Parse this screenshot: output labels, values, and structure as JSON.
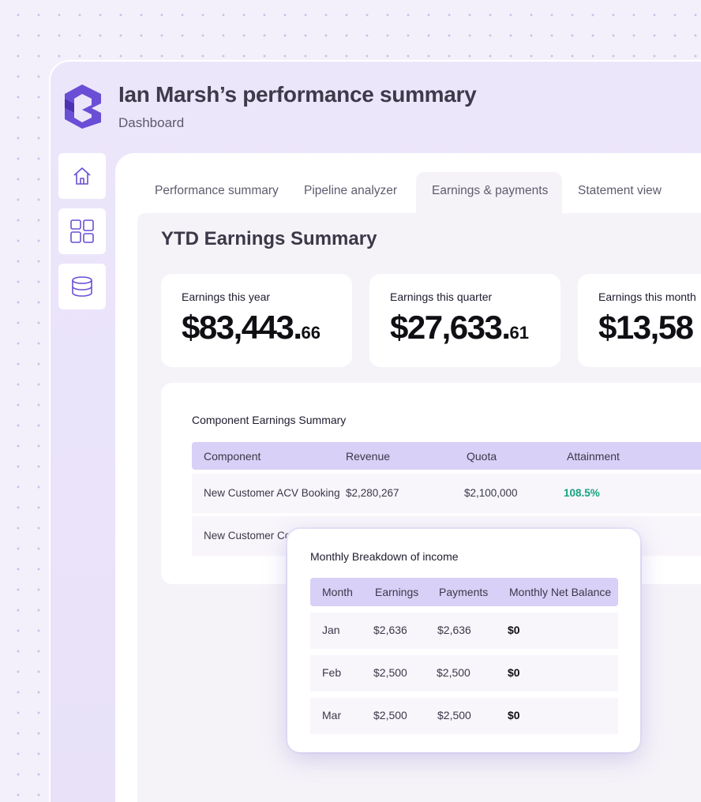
{
  "header": {
    "title": "Ian Marsh’s performance summary",
    "subtitle": "Dashboard"
  },
  "sidebar": {
    "items": [
      {
        "icon": "home-icon"
      },
      {
        "icon": "layout-grid-icon"
      },
      {
        "icon": "database-icon"
      }
    ]
  },
  "tabs": [
    {
      "label": "Performance summary",
      "active": false
    },
    {
      "label": "Pipeline analyzer",
      "active": false
    },
    {
      "label": "Earnings & payments",
      "active": true
    },
    {
      "label": "Statement view",
      "active": false
    }
  ],
  "section": {
    "title": "YTD Earnings Summary"
  },
  "stats": [
    {
      "label": "Earnings this year",
      "whole": "$83,443.",
      "cents": "66"
    },
    {
      "label": "Earnings this quarter",
      "whole": "$27,633.",
      "cents": "61"
    },
    {
      "label": "Earnings this month",
      "whole": "$13,58",
      "cents": ""
    }
  ],
  "component_table": {
    "title": "Component Earnings Summary",
    "columns": [
      "Component",
      "Revenue",
      "Quota",
      "Attainment"
    ],
    "rows": [
      {
        "component": "New Customer ACV Booking",
        "revenue": "$2,280,267",
        "quota": "$2,100,000",
        "attainment": "108.5%"
      },
      {
        "component": "New Customer Co",
        "revenue": "",
        "quota": "",
        "attainment": ""
      }
    ]
  },
  "monthly_table": {
    "title": "Monthly Breakdown of income",
    "columns": [
      "Month",
      "Earnings",
      "Payments",
      "Monthly Net Balance"
    ],
    "rows": [
      {
        "month": "Jan",
        "earnings": "$2,636",
        "payments": "$2,636",
        "net": "$0"
      },
      {
        "month": "Feb",
        "earnings": "$2,500",
        "payments": "$2,500",
        "net": "$0"
      },
      {
        "month": "Mar",
        "earnings": "$2,500",
        "payments": "$2,500",
        "net": "$0"
      }
    ]
  },
  "colors": {
    "accent": "#6a4fd6",
    "header_bg": "#d8d0f7",
    "positive": "#16a37f"
  }
}
